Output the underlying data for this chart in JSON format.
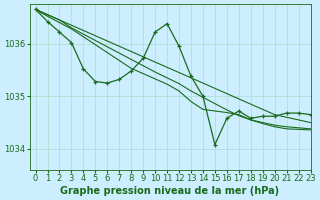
{
  "title": "Graphe pression niveau de la mer (hPa)",
  "bg_color": "#cceeff",
  "grid_color": "#aaddcc",
  "line_color": "#1a6b1a",
  "xlim": [
    -0.5,
    23
  ],
  "ylim": [
    1033.6,
    1036.75
  ],
  "yticks": [
    1034,
    1035,
    1036
  ],
  "xticks": [
    0,
    1,
    2,
    3,
    4,
    5,
    6,
    7,
    8,
    9,
    10,
    11,
    12,
    13,
    14,
    15,
    16,
    17,
    18,
    19,
    20,
    21,
    22,
    23
  ],
  "smooth_series": [
    [
      1036.65,
      1036.55,
      1036.45,
      1036.35,
      1036.25,
      1036.15,
      1036.05,
      1035.95,
      1035.85,
      1035.75,
      1035.65,
      1035.55,
      1035.45,
      1035.35,
      1035.25,
      1035.15,
      1035.05,
      1034.95,
      1034.85,
      1034.75,
      1034.65,
      1034.6,
      1034.55,
      1034.5
    ],
    [
      1036.65,
      1036.55,
      1036.45,
      1036.3,
      1036.18,
      1036.06,
      1035.94,
      1035.82,
      1035.7,
      1035.58,
      1035.46,
      1035.35,
      1035.24,
      1035.1,
      1034.98,
      1034.86,
      1034.74,
      1034.63,
      1034.55,
      1034.5,
      1034.45,
      1034.42,
      1034.4,
      1034.38
    ],
    [
      1036.65,
      1036.52,
      1036.4,
      1036.28,
      1036.13,
      1035.98,
      1035.83,
      1035.68,
      1035.53,
      1035.43,
      1035.33,
      1035.23,
      1035.1,
      1034.9,
      1034.75,
      1034.72,
      1034.69,
      1034.65,
      1034.55,
      1034.48,
      1034.42,
      1034.38,
      1034.37,
      1034.36
    ]
  ],
  "marker_series": [
    1036.65,
    1036.42,
    1036.22,
    1036.02,
    1035.52,
    1035.28,
    1035.25,
    1035.32,
    1035.48,
    1035.72,
    1036.22,
    1036.38,
    1035.95,
    1035.38,
    1035.0,
    1034.08,
    1034.58,
    1034.72,
    1034.58,
    1034.62,
    1034.62,
    1034.68,
    1034.68,
    1034.65
  ],
  "tick_fontsize": 6,
  "title_fontsize": 7
}
